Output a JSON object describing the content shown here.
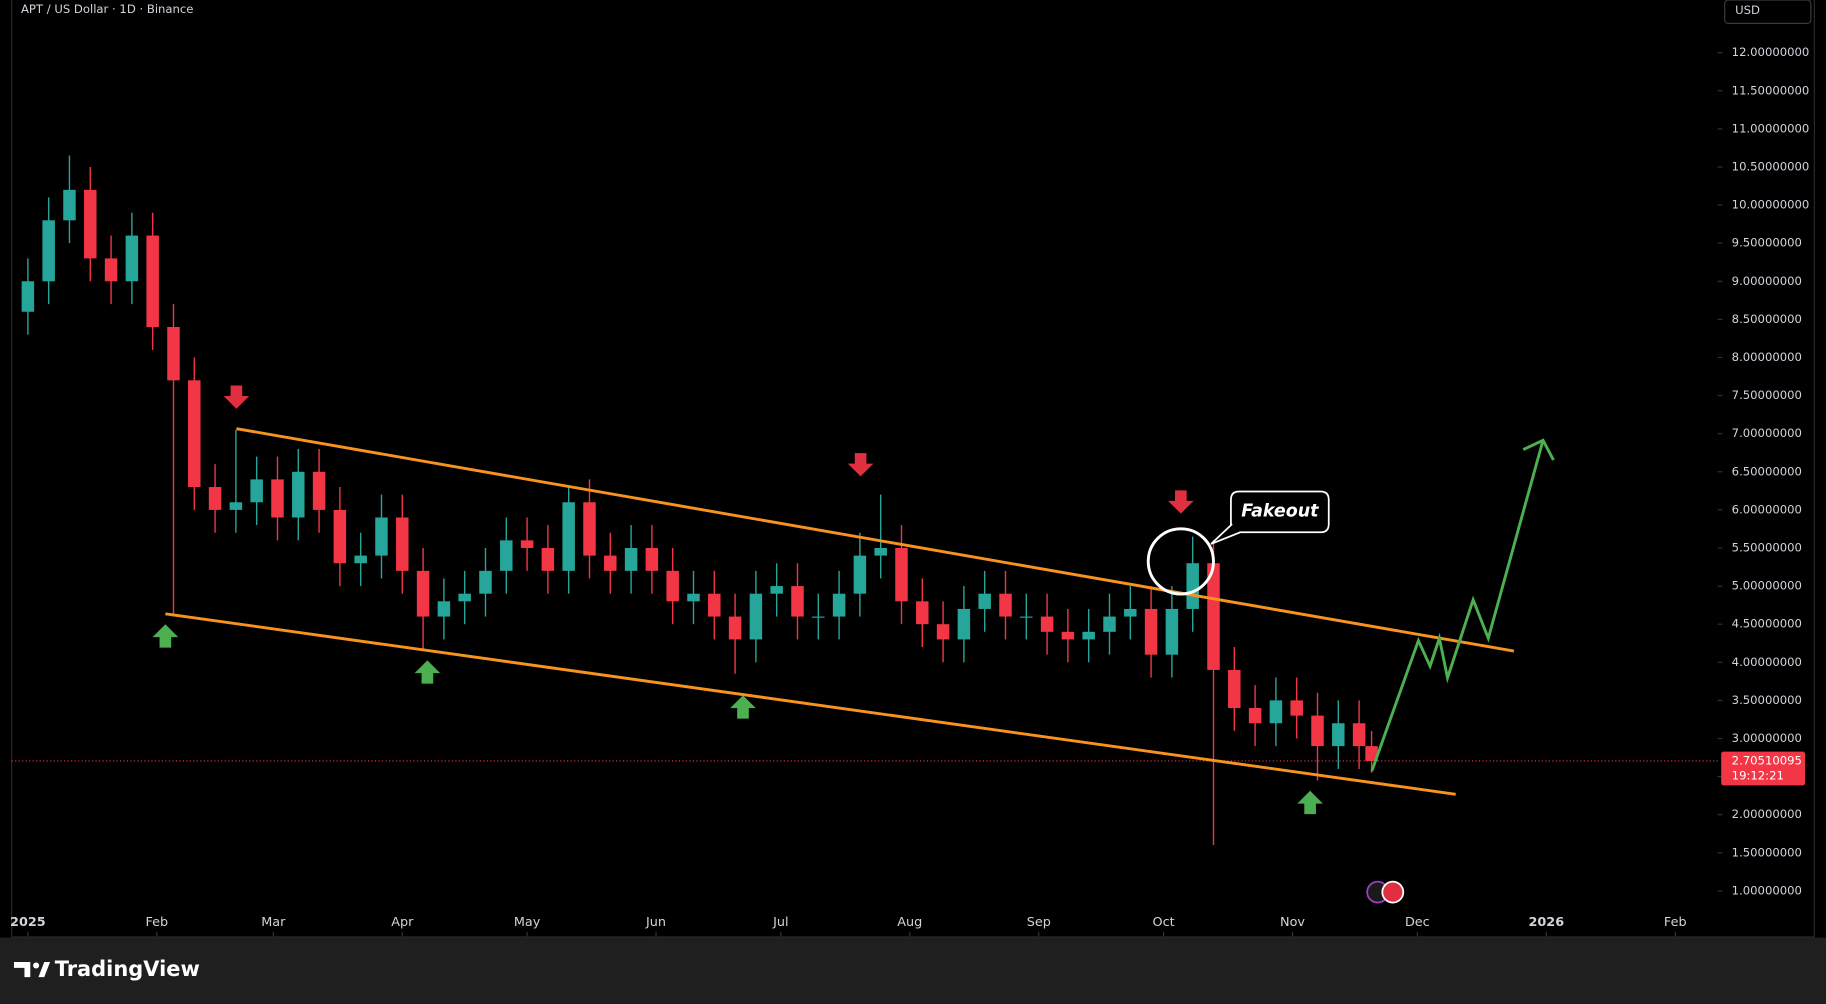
{
  "chart_data": {
    "type": "candlestick",
    "title": "APT / US Dollar · 1D · Binance",
    "currency": "USD",
    "annotation": "Fakeout",
    "brand": "TradingView",
    "last_price": 2.70510095,
    "countdown": "19:12:21",
    "up_color": "#26a69a",
    "down_color": "#f23645",
    "x": [
      0,
      5,
      10,
      15,
      20,
      25,
      30,
      35,
      40,
      45,
      50,
      55,
      60,
      65,
      70,
      75,
      80,
      85,
      90,
      95,
      100,
      105,
      110,
      115,
      120,
      125,
      130,
      135,
      140,
      145,
      150,
      155,
      160,
      165,
      170,
      175,
      180,
      185,
      190,
      195,
      200,
      205,
      210,
      215,
      220,
      225,
      230,
      235,
      240,
      245,
      250,
      255,
      260,
      265,
      270,
      275,
      280,
      285,
      290,
      295,
      300,
      305,
      310,
      315,
      320,
      323
    ],
    "open": [
      8.6,
      9.0,
      9.8,
      10.2,
      9.3,
      9.0,
      9.6,
      8.4,
      7.7,
      6.3,
      6.0,
      6.1,
      6.4,
      5.9,
      6.5,
      6.0,
      5.3,
      5.4,
      5.9,
      5.2,
      4.6,
      4.8,
      4.9,
      5.2,
      5.6,
      5.5,
      5.2,
      6.1,
      5.4,
      5.2,
      5.5,
      5.2,
      4.8,
      4.9,
      4.6,
      4.3,
      4.9,
      5.0,
      4.6,
      4.6,
      4.9,
      5.4,
      5.5,
      4.8,
      4.5,
      4.3,
      4.7,
      4.9,
      4.6,
      4.6,
      4.4,
      4.3,
      4.4,
      4.6,
      4.7,
      4.1,
      4.7,
      5.3,
      3.9,
      3.4,
      3.2,
      3.5,
      3.3,
      2.9,
      3.2,
      2.9
    ],
    "high": [
      9.3,
      10.1,
      10.65,
      10.5,
      9.6,
      9.9,
      9.9,
      8.7,
      8.0,
      6.6,
      7.05,
      6.7,
      6.7,
      6.8,
      6.8,
      6.3,
      5.7,
      6.2,
      6.2,
      5.5,
      5.1,
      5.2,
      5.5,
      5.9,
      5.9,
      5.8,
      6.3,
      6.4,
      5.7,
      5.8,
      5.8,
      5.5,
      5.2,
      5.2,
      4.9,
      5.2,
      5.3,
      5.3,
      4.9,
      5.2,
      5.7,
      6.2,
      5.8,
      5.1,
      4.8,
      5.0,
      5.2,
      5.2,
      4.9,
      4.9,
      4.7,
      4.7,
      4.9,
      5.0,
      5.0,
      5.0,
      5.65,
      5.6,
      4.2,
      3.7,
      3.8,
      3.8,
      3.6,
      3.5,
      3.5,
      3.1
    ],
    "low": [
      8.3,
      8.7,
      9.5,
      9.0,
      8.7,
      8.7,
      8.1,
      4.6,
      6.0,
      5.7,
      5.7,
      5.8,
      5.6,
      5.6,
      5.7,
      5.0,
      5.0,
      5.1,
      4.9,
      4.15,
      4.3,
      4.5,
      4.6,
      4.9,
      5.2,
      4.9,
      4.9,
      5.1,
      4.9,
      4.9,
      4.9,
      4.5,
      4.5,
      4.3,
      3.85,
      4.0,
      4.6,
      4.3,
      4.3,
      4.3,
      4.6,
      5.1,
      4.5,
      4.2,
      4.0,
      4.0,
      4.4,
      4.3,
      4.3,
      4.1,
      4.0,
      4.0,
      4.1,
      4.3,
      3.8,
      3.8,
      4.4,
      1.6,
      3.1,
      2.9,
      2.9,
      3.0,
      2.45,
      2.6,
      2.6,
      2.55
    ],
    "close": [
      9.0,
      9.8,
      10.2,
      9.3,
      9.0,
      9.6,
      8.4,
      7.7,
      6.3,
      6.0,
      6.1,
      6.4,
      5.9,
      6.5,
      6.0,
      5.3,
      5.4,
      5.9,
      5.2,
      4.6,
      4.8,
      4.9,
      5.2,
      5.6,
      5.5,
      5.2,
      6.1,
      5.4,
      5.2,
      5.5,
      5.2,
      4.8,
      4.9,
      4.6,
      4.3,
      4.9,
      5.0,
      4.6,
      4.6,
      4.9,
      5.4,
      5.5,
      4.8,
      4.5,
      4.3,
      4.7,
      4.9,
      4.6,
      4.6,
      4.4,
      4.3,
      4.4,
      4.6,
      4.7,
      4.1,
      4.7,
      5.3,
      3.9,
      3.4,
      3.2,
      3.5,
      3.3,
      2.9,
      3.2,
      2.9,
      2.705
    ],
    "xlim": [
      -3.9,
      406.2
    ],
    "xticks": [
      {
        "value": 0,
        "label": "2025"
      },
      {
        "value": 31,
        "label": "Feb"
      },
      {
        "value": 59,
        "label": "Mar"
      },
      {
        "value": 90,
        "label": "Apr"
      },
      {
        "value": 120,
        "label": "May"
      },
      {
        "value": 151,
        "label": "Jun"
      },
      {
        "value": 181,
        "label": "Jul"
      },
      {
        "value": 212,
        "label": "Aug"
      },
      {
        "value": 243,
        "label": "Sep"
      },
      {
        "value": 273,
        "label": "Oct"
      },
      {
        "value": 304,
        "label": "Nov"
      },
      {
        "value": 334,
        "label": "Dec"
      },
      {
        "value": 365,
        "label": "2026"
      },
      {
        "value": 396,
        "label": "Feb"
      }
    ],
    "ylim": [
      0.77,
      12.69
    ],
    "yticks": [
      {
        "value": 1,
        "label": "1.00000000"
      },
      {
        "value": 1.5,
        "label": "1.50000000"
      },
      {
        "value": 2,
        "label": "2.00000000"
      },
      {
        "value": 2.5,
        "label": "2.50000000"
      },
      {
        "value": 3,
        "label": "3.00000000"
      },
      {
        "value": 3.5,
        "label": "3.50000000"
      },
      {
        "value": 4,
        "label": "4.00000000"
      },
      {
        "value": 4.5,
        "label": "4.50000000"
      },
      {
        "value": 5,
        "label": "5.00000000"
      },
      {
        "value": 5.5,
        "label": "5.50000000"
      },
      {
        "value": 6,
        "label": "6.00000000"
      },
      {
        "value": 6.5,
        "label": "6.50000000"
      },
      {
        "value": 7,
        "label": "7.00000000"
      },
      {
        "value": 7.5,
        "label": "7.50000000"
      },
      {
        "value": 8,
        "label": "8.00000000"
      },
      {
        "value": 8.5,
        "label": "8.50000000"
      },
      {
        "value": 9,
        "label": "9.00000000"
      },
      {
        "value": 9.5,
        "label": "9.50000000"
      },
      {
        "value": 10,
        "label": "10.00000000"
      },
      {
        "value": 10.5,
        "label": "10.50000000"
      },
      {
        "value": 11,
        "label": "11.00000000"
      },
      {
        "value": 11.5,
        "label": "11.50000000"
      },
      {
        "value": 12,
        "label": "12.00000000"
      }
    ],
    "grid": false
  }
}
